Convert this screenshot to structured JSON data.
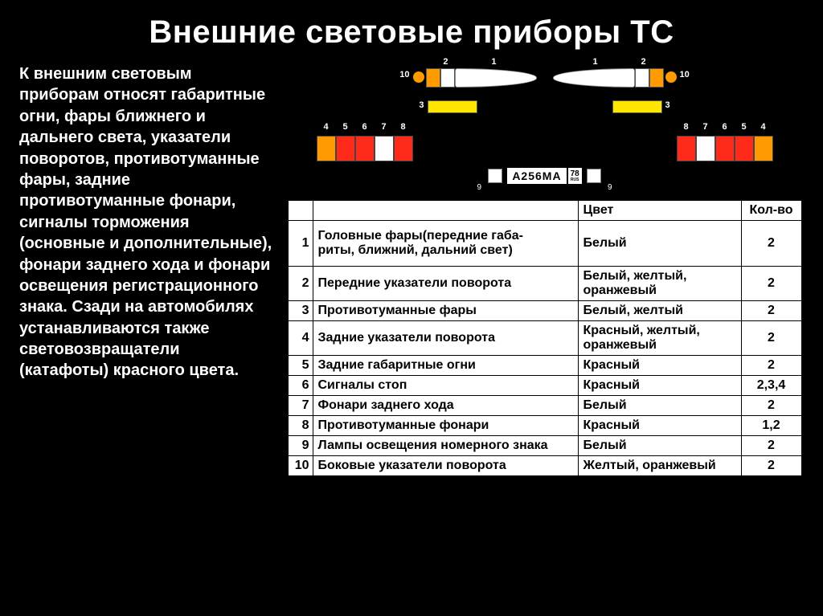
{
  "title": "Внешние световые приборы ТС",
  "left_text": "К внешним световым приборам относят габаритные огни, фары ближнего и дальнего света, указатели поворотов, противотуманные фары, задние противотуманные фонари, сигналы торможения (основные и дополнительные), фонари заднего хода и фонари освещения регистрационного знака. Сзади на автомобилях устанавливаются также световозвращатели (катафоты) красного цвета.",
  "diagram": {
    "colors": {
      "headlamp": "#ffffff",
      "ind1": "#ffffff",
      "ind2": "#ff9a00",
      "tip10": "#ff9a00",
      "fog": "#ffe600",
      "rear_sequence_left": [
        "#ff9a00",
        "#ff2a1a",
        "#ff2a1a",
        "#ffffff",
        "#ff2a1a"
      ],
      "rear_sequence_right": [
        "#ff2a1a",
        "#ffffff",
        "#ff2a1a",
        "#ff2a1a",
        "#ff9a00"
      ],
      "plate_side": "#ffffff"
    },
    "front_labels_left": [
      "1",
      "2",
      "10"
    ],
    "front_labels_right": [
      "1",
      "2",
      "10"
    ],
    "fog_label": "3",
    "rear_labels_left": [
      "4",
      "5",
      "6",
      "7",
      "8"
    ],
    "rear_labels_right": [
      "8",
      "7",
      "6",
      "5",
      "4"
    ],
    "plate": {
      "number": "А256МА",
      "region": "78",
      "country": "RUS",
      "side_label": "9"
    }
  },
  "table": {
    "headers": [
      "",
      "",
      "Цвет",
      "Кол-во"
    ],
    "rows": [
      {
        "n": "1",
        "name": "Головные фары(передние габа-\nриты, ближний, дальний свет)",
        "color": "Белый",
        "qty": "2",
        "tall": true
      },
      {
        "n": "2",
        "name": "Передние указатели поворота",
        "color": "Белый, желтый, оранжевый",
        "qty": "2"
      },
      {
        "n": "3",
        "name": "Противотуманные фары",
        "color": "Белый, желтый",
        "qty": "2"
      },
      {
        "n": "4",
        "name": "Задние указатели поворота",
        "color": "Красный, желтый, оранжевый",
        "qty": "2"
      },
      {
        "n": "5",
        "name": "Задние габаритные огни",
        "color": "Красный",
        "qty": "2"
      },
      {
        "n": "6",
        "name": "Сигналы стоп",
        "color": "Красный",
        "qty": "2,3,4"
      },
      {
        "n": "7",
        "name": "Фонари заднего хода",
        "color": "Белый",
        "qty": "2"
      },
      {
        "n": "8",
        "name": "Противотуманные фонари",
        "color": "Красный",
        "qty": "1,2"
      },
      {
        "n": "9",
        "name": "Лампы освещения номерного знака",
        "color": "Белый",
        "qty": "2"
      },
      {
        "n": "10",
        "name": "Боковые указатели поворота",
        "color": "Желтый, оранжевый",
        "qty": "2"
      }
    ]
  }
}
